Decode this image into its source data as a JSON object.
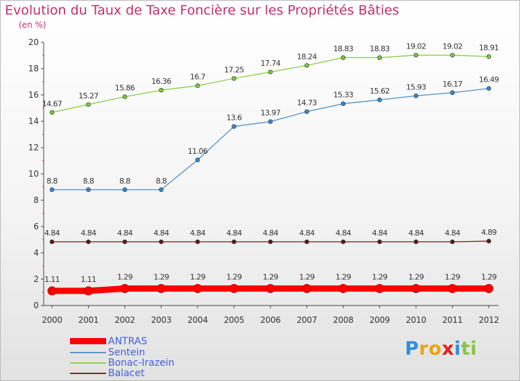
{
  "chart_data": {
    "type": "line",
    "title": "Evolution du Taux de Taxe Foncière sur les Propriétés Bâties",
    "subtitle": "(en %)",
    "x": [
      "2000",
      "2001",
      "2002",
      "2003",
      "2004",
      "2005",
      "2006",
      "2007",
      "2008",
      "2009",
      "2010",
      "2011",
      "2012"
    ],
    "ylim": [
      0,
      20
    ],
    "yticks": [
      0,
      2,
      4,
      6,
      8,
      10,
      12,
      14,
      16,
      18,
      20
    ],
    "grid": false,
    "legend_position": "bottom-left",
    "series": [
      {
        "name": "ANTRAS",
        "color": "#ff0000",
        "marker": "#ff0000",
        "values": [
          1.11,
          1.11,
          1.29,
          1.29,
          1.29,
          1.29,
          1.29,
          1.29,
          1.29,
          1.29,
          1.29,
          1.29,
          1.29
        ],
        "labels": [
          "1.11",
          "1.11",
          "1.29",
          "1.29",
          "1.29",
          "1.29",
          "1.29",
          "1.29",
          "1.29",
          "1.29",
          "1.29",
          "1.29",
          "1.29"
        ]
      },
      {
        "name": "Sentein",
        "color": "#5b96c6",
        "marker": "#3a86c8",
        "values": [
          8.8,
          8.8,
          8.8,
          8.8,
          11.06,
          13.6,
          13.97,
          14.73,
          15.33,
          15.62,
          15.93,
          16.17,
          16.49
        ],
        "labels": [
          "8.8",
          "8.8",
          "8.8",
          "8.8",
          "11.06",
          "13.6",
          "13.97",
          "14.73",
          "15.33",
          "15.62",
          "15.93",
          "16.17",
          "16.49"
        ]
      },
      {
        "name": "Bonac-Irazein",
        "color": "#8fd14f",
        "marker": "#7cc43f",
        "values": [
          14.67,
          15.27,
          15.86,
          16.36,
          16.7,
          17.25,
          17.74,
          18.24,
          18.83,
          18.83,
          19.02,
          19.02,
          18.91
        ],
        "labels": [
          "14.67",
          "15.27",
          "15.86",
          "16.36",
          "16.7",
          "17.25",
          "17.74",
          "18.24",
          "18.83",
          "18.83",
          "19.02",
          "19.02",
          "18.91"
        ]
      },
      {
        "name": "Balacet",
        "color": "#7a2a2a",
        "marker": "#5a1c1c",
        "values": [
          4.84,
          4.84,
          4.84,
          4.84,
          4.84,
          4.84,
          4.84,
          4.84,
          4.84,
          4.84,
          4.84,
          4.84,
          4.89
        ],
        "labels": [
          "4.84",
          "4.84",
          "4.84",
          "4.84",
          "4.84",
          "4.84",
          "4.84",
          "4.84",
          "4.84",
          "4.84",
          "4.84",
          "4.84",
          "4.89"
        ]
      }
    ]
  },
  "legend": [
    {
      "label": "ANTRAS",
      "color": "#ff0000"
    },
    {
      "label": "Sentein",
      "color": "#5b96c6"
    },
    {
      "label": "Bonac-Irazein",
      "color": "#8fd14f"
    },
    {
      "label": "Balacet",
      "color": "#7a2a2a"
    }
  ],
  "logo": {
    "l1": "P",
    "l2": "r",
    "l3": "o",
    "l4": "x",
    "l5": "i",
    "l6": "ti"
  }
}
